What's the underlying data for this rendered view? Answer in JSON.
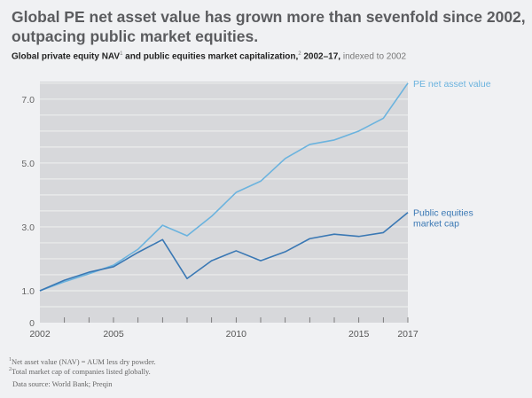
{
  "title": "Global PE net asset value has grown more than sevenfold since 2002, outpacing public market equities.",
  "subtitle": {
    "part1": "Global private equity NAV",
    "sup1": "1",
    "part2": " and public equities market capitalization,",
    "sup2": "2",
    "part3": " 2002–17,",
    "part4": " indexed to 2002"
  },
  "chart_data": {
    "type": "line",
    "x": [
      2002,
      2003,
      2004,
      2005,
      2006,
      2007,
      2008,
      2009,
      2010,
      2011,
      2012,
      2013,
      2014,
      2015,
      2016,
      2017
    ],
    "series": [
      {
        "name": "PE net asset value",
        "color": "#6bb3de",
        "values": [
          1.0,
          1.28,
          1.53,
          1.8,
          2.3,
          3.05,
          2.72,
          3.33,
          4.08,
          4.43,
          5.14,
          5.58,
          5.72,
          6.0,
          6.4,
          7.5
        ]
      },
      {
        "name": "Public equities market cap",
        "color": "#3a78b4",
        "values": [
          1.0,
          1.33,
          1.58,
          1.75,
          2.2,
          2.6,
          1.38,
          1.94,
          2.25,
          1.94,
          2.22,
          2.63,
          2.77,
          2.7,
          2.82,
          3.45
        ]
      }
    ],
    "xlim": [
      2002,
      2017
    ],
    "ylim": [
      0,
      7.55
    ],
    "x_tick_labels": [
      "2002",
      "2005",
      "2010",
      "2015",
      "2017"
    ],
    "y_tick_labels": [
      "0",
      "1.0",
      "3.0",
      "5.0",
      "7.0"
    ],
    "grid": true,
    "legend": "line-end labels, right"
  },
  "footnotes": {
    "f1_mark": "1",
    "f1": "Net asset value (NAV) = AUM less dry powder.",
    "f2_mark": "2",
    "f2": "Total market cap of companies listed globally.",
    "source": "Data source: World Bank; Preqin"
  }
}
